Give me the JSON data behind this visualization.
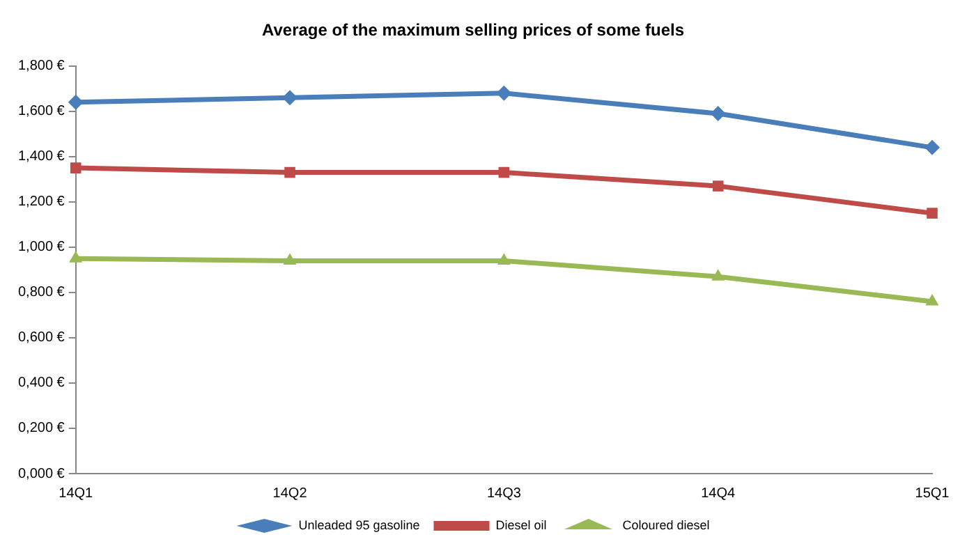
{
  "chart_data": {
    "type": "line",
    "title": "Average of the maximum selling prices of some fuels",
    "categories": [
      "14Q1",
      "14Q2",
      "14Q3",
      "14Q4",
      "15Q1"
    ],
    "series": [
      {
        "name": "Unleaded 95 gasoline",
        "color": "#4a7ebb",
        "marker": "diamond",
        "values": [
          1.64,
          1.66,
          1.68,
          1.59,
          1.44
        ]
      },
      {
        "name": "Diesel oil",
        "color": "#be4b48",
        "marker": "square",
        "values": [
          1.35,
          1.33,
          1.33,
          1.27,
          1.15
        ]
      },
      {
        "name": "Coloured diesel",
        "color": "#98b954",
        "marker": "triangle",
        "values": [
          0.95,
          0.94,
          0.94,
          0.87,
          0.76
        ]
      }
    ],
    "ylim": [
      0,
      1.8
    ],
    "yticks": [
      {
        "value": 0,
        "label": "0,000 €"
      },
      {
        "value": 0.2,
        "label": "0,200 €"
      },
      {
        "value": 0.4,
        "label": "0,400 €"
      },
      {
        "value": 0.6,
        "label": "0,600 €"
      },
      {
        "value": 0.8,
        "label": "0,800 €"
      },
      {
        "value": 1,
        "label": "1,000 €"
      },
      {
        "value": 1.2,
        "label": "1,200 €"
      },
      {
        "value": 1.4,
        "label": "1,400 €"
      },
      {
        "value": 1.6,
        "label": "1,600 €"
      },
      {
        "value": 1.8,
        "label": "1,800 €"
      }
    ],
    "legend": "bottom",
    "line_style": "solid"
  }
}
